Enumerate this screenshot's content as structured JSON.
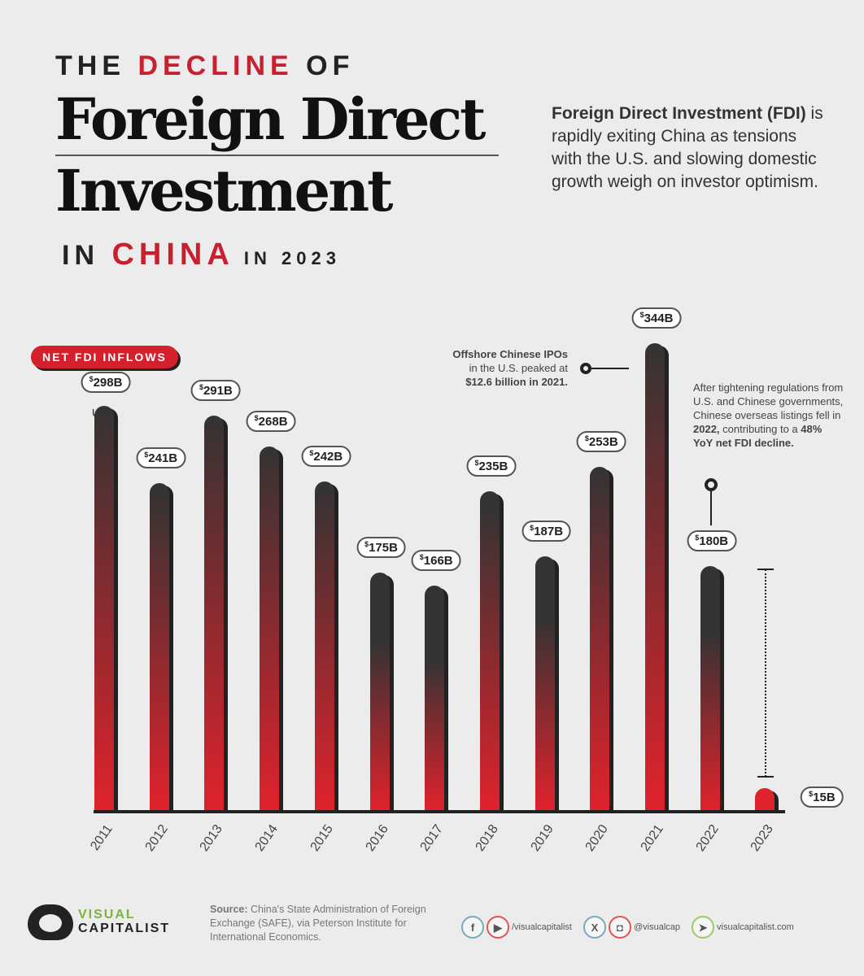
{
  "title": {
    "line1_pre": "THE ",
    "line1_red": "DECLINE",
    "line1_post": " OF",
    "main1": "Foreign Direct",
    "main2": "Investment",
    "line3_pre": "IN ",
    "line3_red": "CHINA",
    "line3_post": " IN 2023"
  },
  "intro": {
    "bold": "Foreign Direct Investment (FDI)",
    "rest": " is rapidly exiting China as tensions with the U.S. and slowing domestic growth weigh on investor optimism."
  },
  "tag": "NET FDI INFLOWS",
  "unit": "USD",
  "annotations": {
    "ipo": {
      "l1": "Offshore Chinese IPOs",
      "l2": "in the U.S. peaked at",
      "l3": "$12.6 billion in 2021."
    },
    "decline": {
      "t1": "After tightening regulations from U.S. and Chinese governments, Chinese overseas listings fell in ",
      "b1": "2022,",
      "t2": " contributing to a ",
      "b2": "48% YoY net FDI decline."
    }
  },
  "chart_data": {
    "type": "bar",
    "title": "The Decline of Foreign Direct Investment in China in 2023",
    "ylabel": "Net FDI inflows (USD billions)",
    "categories": [
      "2011",
      "2012",
      "2013",
      "2014",
      "2015",
      "2016",
      "2017",
      "2018",
      "2019",
      "2020",
      "2021",
      "2022",
      "2023"
    ],
    "values": [
      298,
      241,
      291,
      268,
      242,
      175,
      166,
      235,
      187,
      253,
      344,
      180,
      15
    ],
    "labels": [
      "298B",
      "241B",
      "291B",
      "268B",
      "242B",
      "175B",
      "166B",
      "235B",
      "187B",
      "253B",
      "344B",
      "180B",
      "15B"
    ],
    "ylim": [
      0,
      344
    ],
    "colors": {
      "top": "#333333",
      "bottom": "#e0222c"
    }
  },
  "footer": {
    "brand1": "VISUAL",
    "brand2": "CAPITALIST",
    "source_bold": "Source:",
    "source": " China's State Administration of Foreign Exchange (SAFE), via Peterson Institute for International Economics.",
    "fb": "f",
    "yt": "▶",
    "handle1": "/visualcapitalist",
    "x": "X",
    "ig": "◘",
    "handle2": "@visualcap",
    "web_icon": "➤",
    "site": "visualcapitalist.com"
  }
}
